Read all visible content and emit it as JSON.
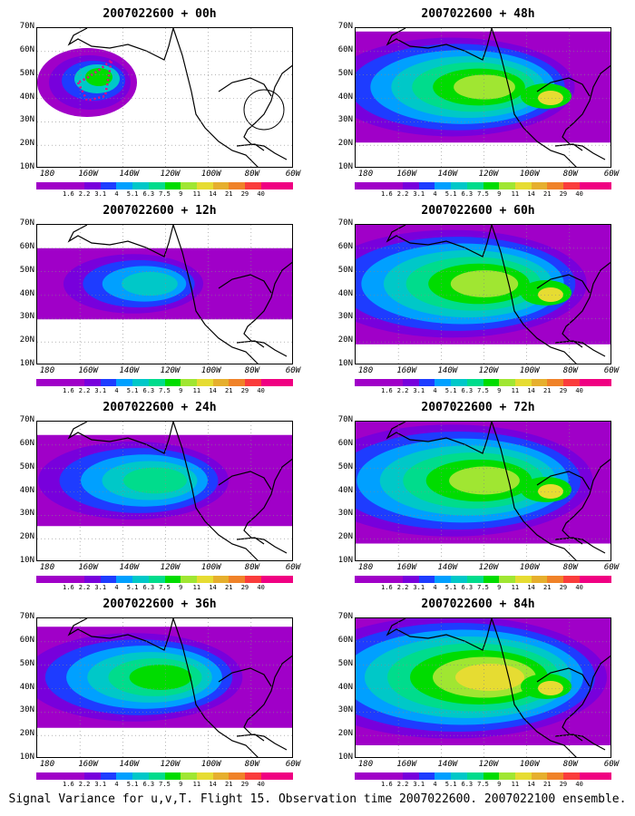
{
  "panels": [
    {
      "title": "2007022600 + 00h"
    },
    {
      "title": "2007022600 + 48h"
    },
    {
      "title": "2007022600 + 12h"
    },
    {
      "title": "2007022600 + 60h"
    },
    {
      "title": "2007022600 + 24h"
    },
    {
      "title": "2007022600 + 72h"
    },
    {
      "title": "2007022600 + 36h"
    },
    {
      "title": "2007022600 + 84h"
    }
  ],
  "lat_labels": [
    "70N",
    "60N",
    "50N",
    "40N",
    "30N",
    "20N",
    "10N"
  ],
  "lon_labels": [
    "180",
    "160W",
    "140W",
    "120W",
    "100W",
    "80W",
    "60W"
  ],
  "colorbar": {
    "labels": [
      "1.6",
      "2.2",
      "3.1",
      "4",
      "5.1",
      "6.3",
      "7.5",
      "9",
      "11",
      "14",
      "21",
      "29",
      "40"
    ],
    "colors": [
      "#a000c8",
      "#7800dc",
      "#1e3cff",
      "#00a0ff",
      "#00c8c8",
      "#00dc8c",
      "#00dc00",
      "#a0e632",
      "#e6dc32",
      "#e6af2d",
      "#f08228",
      "#fa3c3c",
      "#f00082"
    ]
  },
  "caption": "Signal Variance for u,v,T. Flight 15. Observation time 2007022600. 2007022100 ensemble."
}
